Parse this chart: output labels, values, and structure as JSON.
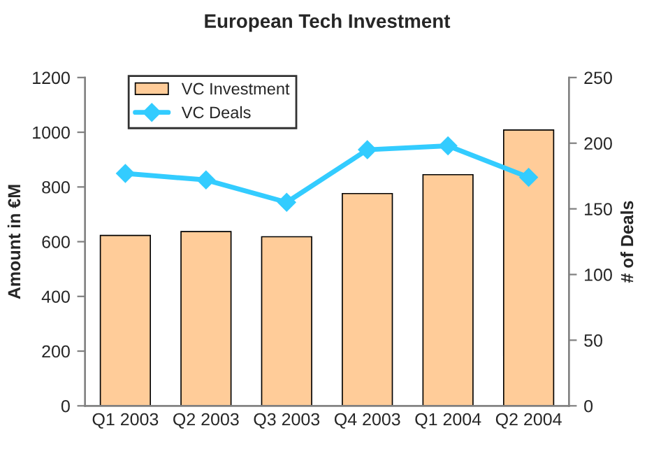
{
  "chart_data": {
    "type": "bar",
    "title": "European Tech Investment",
    "categories": [
      "Q1 2003",
      "Q2 2003",
      "Q3 2003",
      "Q4 2003",
      "Q1 2004",
      "Q2 2004"
    ],
    "series": [
      {
        "name": "VC Investment",
        "color": "#ffcc99",
        "values": [
          623,
          637,
          618,
          776,
          845,
          1008
        ]
      },
      {
        "name": "VC Deals",
        "type": "line",
        "axis": "y2",
        "color": "#33ccff",
        "marker": "diamond",
        "values": [
          177,
          172,
          155,
          195,
          198,
          174
        ]
      }
    ],
    "ylabel": "Amount in €M",
    "y2label": "# of Deals",
    "ylim": [
      0,
      1200
    ],
    "yticks": [
      0,
      200,
      400,
      600,
      800,
      1000,
      1200
    ],
    "y2lim": [
      0,
      250
    ],
    "y2ticks": [
      0,
      50,
      100,
      150,
      200,
      250
    ],
    "legend": "top left",
    "grid": false
  }
}
